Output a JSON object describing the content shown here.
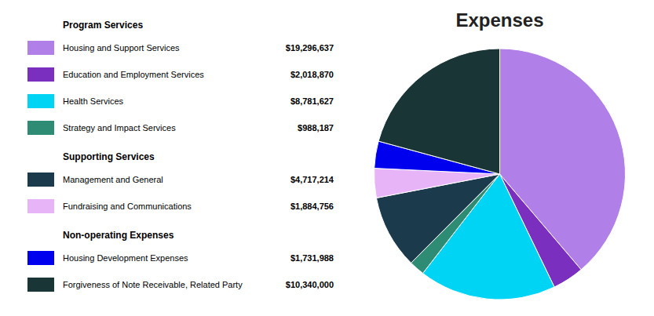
{
  "chart_data": {
    "type": "pie",
    "title": "Expenses",
    "categories": [
      "Housing and Support Services",
      "Education and Employment Services",
      "Health Services",
      "Strategy and Impact Services",
      "Management and General",
      "Fundraising and Communications",
      "Housing Development Expenses",
      "Forgiveness of Note Receivable, Related Party"
    ],
    "groups": [
      "Program Services",
      "Program Services",
      "Program Services",
      "Program Services",
      "Supporting Services",
      "Supporting Services",
      "Non-operating Expenses",
      "Non-operating Expenses"
    ],
    "values": [
      19296637,
      2018870,
      8781627,
      988187,
      4717214,
      1884756,
      1731988,
      10340000
    ],
    "value_labels": [
      "$19,296,637",
      "$2,018,870",
      "$8,781,627",
      "$988,187",
      "$4,717,214",
      "$1,884,756",
      "$1,731,988",
      "$10,340,000"
    ],
    "colors": [
      "#b07fe8",
      "#7b2fbe",
      "#00d4f5",
      "#2e8b74",
      "#1b3a4b",
      "#e8b4f8",
      "#0000ee",
      "#1a3535"
    ],
    "legend": "left"
  }
}
